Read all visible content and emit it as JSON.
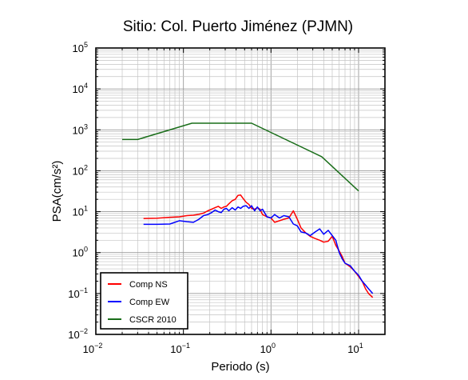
{
  "chart_data": {
    "type": "line",
    "title": "Sitio: Col. Puerto Jiménez (PJMN)",
    "xlabel": "Periodo (s)",
    "ylabel": "PSA(cm/s²)",
    "xscale": "log",
    "yscale": "log",
    "xlim": [
      0.01,
      20
    ],
    "ylim": [
      0.01,
      100000
    ],
    "grid": true,
    "legend_position": "bottom-left",
    "x_ticks": [
      {
        "base": "10",
        "exp": "−2"
      },
      {
        "base": "10",
        "exp": "−1"
      },
      {
        "base": "10",
        "exp": "0"
      },
      {
        "base": "10",
        "exp": "1"
      }
    ],
    "y_ticks": [
      {
        "base": "10",
        "exp": "−2"
      },
      {
        "base": "10",
        "exp": "−1"
      },
      {
        "base": "10",
        "exp": "0"
      },
      {
        "base": "10",
        "exp": "1"
      },
      {
        "base": "10",
        "exp": "2"
      },
      {
        "base": "10",
        "exp": "3"
      },
      {
        "base": "10",
        "exp": "4"
      },
      {
        "base": "10",
        "exp": "5"
      }
    ],
    "series": [
      {
        "name": "Comp NS",
        "color": "#ff0000",
        "points": [
          [
            0.035,
            6.8
          ],
          [
            0.05,
            6.9
          ],
          [
            0.07,
            7.3
          ],
          [
            0.09,
            7.5
          ],
          [
            0.11,
            8.0
          ],
          [
            0.13,
            8.2
          ],
          [
            0.15,
            8.6
          ],
          [
            0.17,
            9.2
          ],
          [
            0.19,
            10.5
          ],
          [
            0.21,
            11.5
          ],
          [
            0.23,
            12.5
          ],
          [
            0.25,
            13.5
          ],
          [
            0.27,
            12.0
          ],
          [
            0.29,
            13.0
          ],
          [
            0.31,
            13.5
          ],
          [
            0.33,
            15.5
          ],
          [
            0.36,
            18.5
          ],
          [
            0.39,
            20.0
          ],
          [
            0.42,
            25.0
          ],
          [
            0.45,
            25.5
          ],
          [
            0.48,
            21.0
          ],
          [
            0.52,
            17.0
          ],
          [
            0.56,
            15.0
          ],
          [
            0.6,
            12.0
          ],
          [
            0.65,
            11.5
          ],
          [
            0.7,
            12.5
          ],
          [
            0.75,
            11.5
          ],
          [
            0.8,
            8.5
          ],
          [
            0.9,
            7.5
          ],
          [
            1.0,
            7.0
          ],
          [
            1.1,
            5.5
          ],
          [
            1.25,
            6.0
          ],
          [
            1.4,
            6.5
          ],
          [
            1.6,
            7.0
          ],
          [
            1.8,
            10.5
          ],
          [
            2.0,
            6.5
          ],
          [
            2.2,
            4.0
          ],
          [
            2.5,
            3.0
          ],
          [
            2.8,
            2.5
          ],
          [
            3.2,
            2.2
          ],
          [
            3.6,
            2.0
          ],
          [
            4.0,
            1.8
          ],
          [
            4.5,
            1.9
          ],
          [
            5.0,
            2.5
          ],
          [
            5.5,
            1.5
          ],
          [
            6.0,
            1.1
          ],
          [
            6.5,
            0.8
          ],
          [
            7.0,
            0.55
          ],
          [
            8.0,
            0.45
          ],
          [
            9.0,
            0.35
          ],
          [
            10.0,
            0.26
          ],
          [
            11.0,
            0.2
          ],
          [
            12.0,
            0.13
          ],
          [
            13.0,
            0.1
          ],
          [
            14.5,
            0.08
          ]
        ]
      },
      {
        "name": "Comp EW",
        "color": "#0000ff",
        "points": [
          [
            0.035,
            4.9
          ],
          [
            0.05,
            4.9
          ],
          [
            0.07,
            5.0
          ],
          [
            0.09,
            6.0
          ],
          [
            0.11,
            5.7
          ],
          [
            0.13,
            5.5
          ],
          [
            0.15,
            6.5
          ],
          [
            0.17,
            8.0
          ],
          [
            0.19,
            8.5
          ],
          [
            0.21,
            9.5
          ],
          [
            0.23,
            11.0
          ],
          [
            0.25,
            10.0
          ],
          [
            0.27,
            9.5
          ],
          [
            0.29,
            11.5
          ],
          [
            0.31,
            12.0
          ],
          [
            0.33,
            10.5
          ],
          [
            0.36,
            12.5
          ],
          [
            0.39,
            11.0
          ],
          [
            0.42,
            13.0
          ],
          [
            0.45,
            12.0
          ],
          [
            0.48,
            13.5
          ],
          [
            0.52,
            14.0
          ],
          [
            0.56,
            12.0
          ],
          [
            0.6,
            14.0
          ],
          [
            0.65,
            10.5
          ],
          [
            0.7,
            13.0
          ],
          [
            0.75,
            10.5
          ],
          [
            0.8,
            11.5
          ],
          [
            0.9,
            7.5
          ],
          [
            1.0,
            7.0
          ],
          [
            1.1,
            8.5
          ],
          [
            1.25,
            7.0
          ],
          [
            1.4,
            8.0
          ],
          [
            1.6,
            7.5
          ],
          [
            1.8,
            5.0
          ],
          [
            2.0,
            4.5
          ],
          [
            2.2,
            3.2
          ],
          [
            2.5,
            3.0
          ],
          [
            2.8,
            2.6
          ],
          [
            3.2,
            3.2
          ],
          [
            3.6,
            3.8
          ],
          [
            4.0,
            2.8
          ],
          [
            4.5,
            3.5
          ],
          [
            5.0,
            2.6
          ],
          [
            5.5,
            2.0
          ],
          [
            6.0,
            1.0
          ],
          [
            6.5,
            0.7
          ],
          [
            7.0,
            0.55
          ],
          [
            8.0,
            0.48
          ],
          [
            9.0,
            0.35
          ],
          [
            10.0,
            0.28
          ],
          [
            11.0,
            0.2
          ],
          [
            12.0,
            0.16
          ],
          [
            13.0,
            0.13
          ],
          [
            14.5,
            0.1
          ]
        ]
      },
      {
        "name": "CSCR 2010",
        "color": "#1a6e1a",
        "points": [
          [
            0.02,
            580
          ],
          [
            0.03,
            580
          ],
          [
            0.125,
            1450
          ],
          [
            0.6,
            1450
          ],
          [
            3.8,
            220
          ],
          [
            10.0,
            32
          ]
        ]
      }
    ]
  }
}
